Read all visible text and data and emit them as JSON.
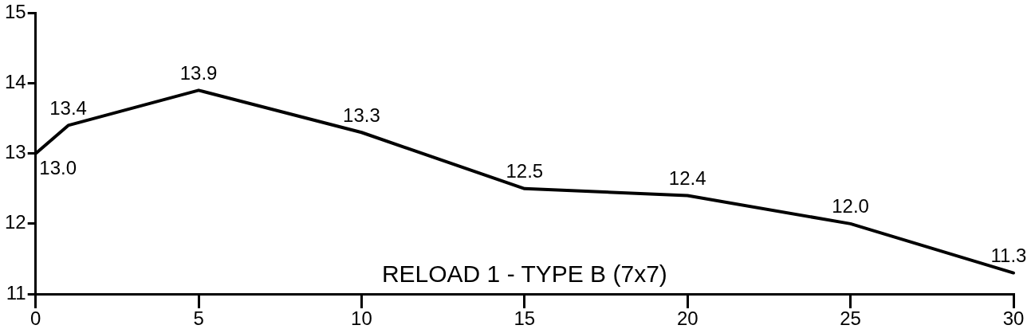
{
  "chart_data": {
    "type": "line",
    "x": [
      0,
      1,
      5,
      10,
      15,
      20,
      25,
      30
    ],
    "series": [
      {
        "color": "#000000",
        "values": [
          13.0,
          13.4,
          13.9,
          13.3,
          12.5,
          12.4,
          12.0,
          11.3
        ],
        "value_labels": [
          "13.0",
          "13.4",
          "13.9",
          "13.3",
          "12.5",
          "12.4",
          "12.0",
          "11.3"
        ]
      }
    ],
    "xlim": [
      0,
      30
    ],
    "xticks": [
      0,
      5,
      10,
      15,
      20,
      25,
      30
    ],
    "ylim": [
      11,
      15
    ],
    "yticks": [
      11,
      12,
      13,
      14,
      15
    ],
    "grid": false,
    "legend": false,
    "marker": "none",
    "line_style": "solid",
    "annotations": [
      "RELOAD 1 - TYPE B (7x7)"
    ]
  }
}
